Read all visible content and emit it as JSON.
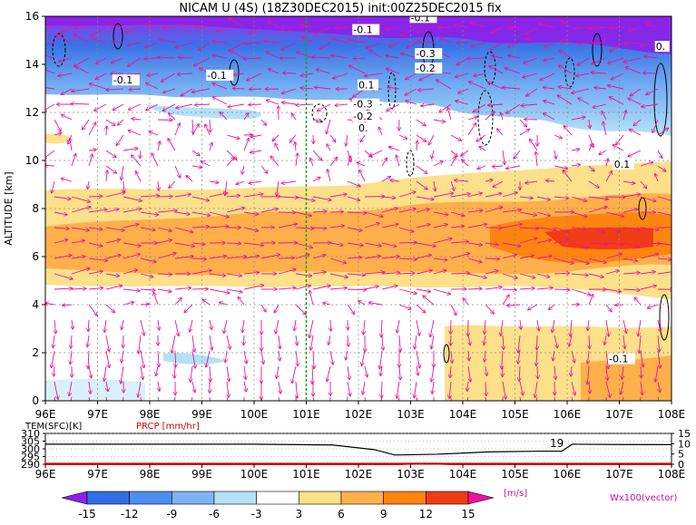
{
  "chart_data": [
    {
      "type": "heatmap",
      "title": "NICAM U (4S) (18Z30DEC2015) init:00Z25DEC2015 fix",
      "xlabel": "",
      "ylabel": "ALTITUDE [km]",
      "x_ticks": [
        "96E",
        "97E",
        "98E",
        "99E",
        "100E",
        "101E",
        "102E",
        "103E",
        "104E",
        "105E",
        "106E",
        "107E",
        "108E"
      ],
      "xlim": [
        96,
        108
      ],
      "y_ticks": [
        "0",
        "2",
        "4",
        "6",
        "8",
        "10",
        "12",
        "14",
        "16"
      ],
      "ylim": [
        0,
        16
      ],
      "grid": true,
      "marker_line_lon": 101,
      "contour_labels": [
        {
          "text": "-0.1",
          "lon": 97.3,
          "alt": 13.2
        },
        {
          "text": "-0.1",
          "lon": 99.1,
          "alt": 13.4
        },
        {
          "text": "-0.1",
          "lon": 101.9,
          "alt": 15.3
        },
        {
          "text": "-0.1",
          "lon": 103.0,
          "alt": 15.8
        },
        {
          "text": "-0.3",
          "lon": 103.1,
          "alt": 14.3
        },
        {
          "text": "-0.2",
          "lon": 103.1,
          "alt": 13.7
        },
        {
          "text": "0.1",
          "lon": 102.0,
          "alt": 13.0
        },
        {
          "text": "-0.3",
          "lon": 101.9,
          "alt": 12.2
        },
        {
          "text": "-0.2",
          "lon": 101.9,
          "alt": 11.7
        },
        {
          "text": "0.",
          "lon": 102.0,
          "alt": 11.2
        },
        {
          "text": "0.",
          "lon": 107.7,
          "alt": 14.6
        },
        {
          "text": "0.1",
          "lon": 106.9,
          "alt": 9.7
        },
        {
          "text": "-0.1",
          "lon": 106.8,
          "alt": 1.6
        }
      ],
      "colorbar": {
        "ticks": [
          "-15",
          "-12",
          "-9",
          "-6",
          "-3",
          "3",
          "6",
          "9",
          "12",
          "15"
        ],
        "unit": "[m/s]",
        "colors": [
          "#8c20e8",
          "#2f6ee6",
          "#4c8fef",
          "#7fb2f4",
          "#b3e2f7",
          "#ffffff",
          "#fde08a",
          "#ffb04a",
          "#ff8410",
          "#f03c14",
          "#b80a0a",
          "#f010a0"
        ]
      },
      "vector_label": "Wx100(vector)"
    },
    {
      "type": "line",
      "series": [
        {
          "name": "TEM(SFC)[K]",
          "color": "#000000",
          "x": [
            96,
            100,
            101.5,
            102.3,
            102.7,
            103.5,
            104.5,
            105.5,
            105.9,
            106.1,
            107,
            108
          ],
          "values": [
            303,
            303,
            302.5,
            299.5,
            296,
            296.5,
            298,
            298.5,
            298.5,
            303,
            302.8,
            302.7
          ]
        },
        {
          "name": "PRCP [mm/hr]",
          "color": "#d00000",
          "x": [
            96,
            102.8,
            103.0,
            103.5,
            103.8,
            108
          ],
          "values": [
            0,
            0,
            0.3,
            0.3,
            0,
            0
          ]
        }
      ],
      "left_ticks": [
        "290",
        "295",
        "300",
        "305",
        "310"
      ],
      "ylim_left": [
        290,
        310
      ],
      "right_ticks": [
        "0",
        "5",
        "10",
        "15"
      ],
      "ylim_right": [
        0,
        15
      ],
      "x_ticks": [
        "96E",
        "97E",
        "98E",
        "99E",
        "100E",
        "101E",
        "102E",
        "103E",
        "104E",
        "105E",
        "106E",
        "107E",
        "108E"
      ],
      "annotation": "19"
    }
  ]
}
